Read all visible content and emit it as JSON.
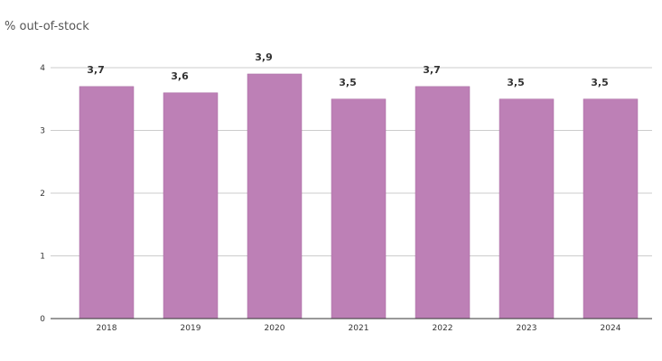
{
  "chart_data": {
    "type": "bar",
    "title": "",
    "xlabel": "",
    "ylabel": "% out-of-stock",
    "categories": [
      "2018",
      "2019",
      "2020",
      "2021",
      "2022",
      "2023",
      "2024"
    ],
    "values": [
      3.7,
      3.6,
      3.9,
      3.5,
      3.7,
      3.5,
      3.5
    ],
    "data_labels": [
      "3,7",
      "3,6",
      "3,9",
      "3,5",
      "3,7",
      "3,5",
      "3,5"
    ],
    "ylim": [
      0,
      4
    ],
    "yticks": [
      0,
      1,
      2,
      3,
      4
    ],
    "grid": true,
    "bar_color": "#bd80b6",
    "legend": "none"
  }
}
